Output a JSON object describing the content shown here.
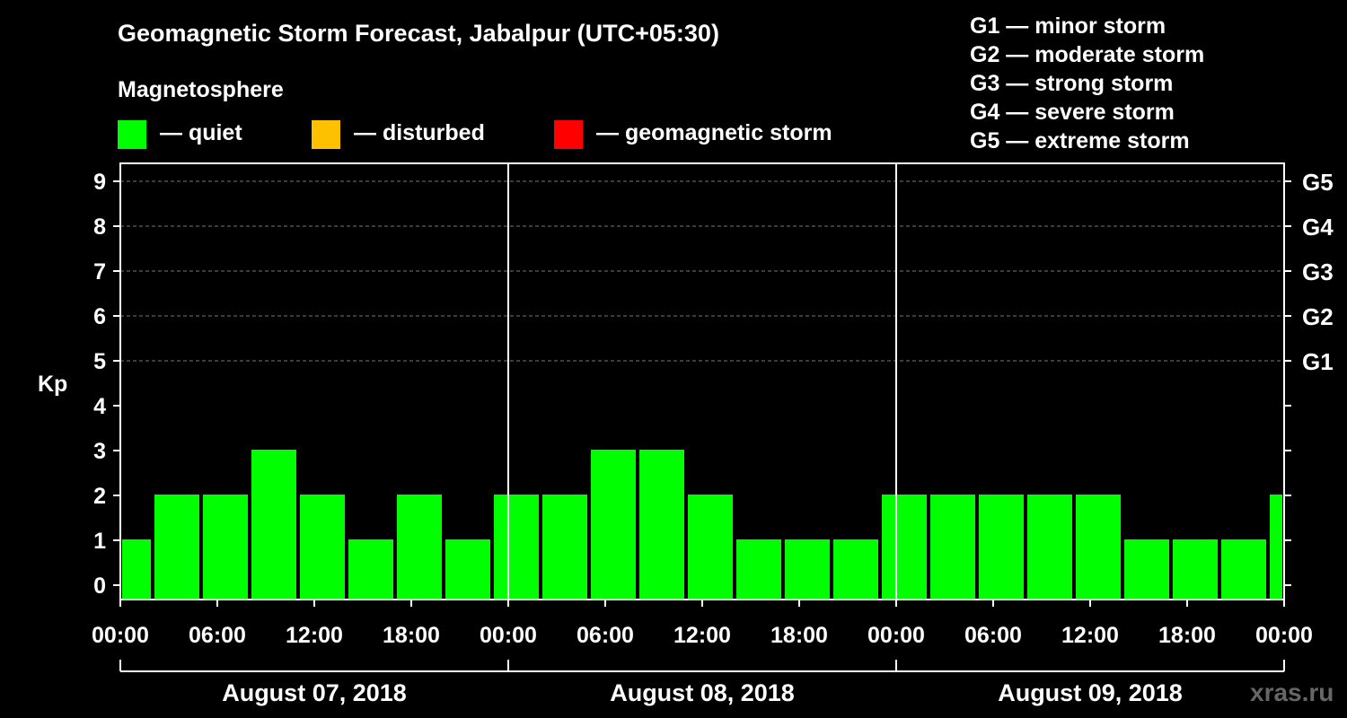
{
  "header": {
    "title": "Geomagnetic Storm Forecast, Jabalpur (UTC+05:30)",
    "magnetosphere_label": "Magnetosphere"
  },
  "legend": [
    {
      "label": "— quiet",
      "color": "#00ff00"
    },
    {
      "label": "— disturbed",
      "color": "#ffc000"
    },
    {
      "label": "— geomagnetic storm",
      "color": "#ff0000"
    }
  ],
  "storm_scale": [
    "G1 — minor storm",
    "G2 — moderate storm",
    "G3 — strong storm",
    "G4 — severe storm",
    "G5 — extreme storm"
  ],
  "watermark": "xras.ru",
  "chart_data": {
    "type": "bar",
    "title": "Geomagnetic Storm Forecast, Jabalpur (UTC+05:30)",
    "ylabel": "Kp",
    "ylim": [
      0,
      9
    ],
    "y_ticks": [
      "0",
      "1",
      "2",
      "3",
      "4",
      "5",
      "6",
      "7",
      "8",
      "9"
    ],
    "right_axis_labels": [
      {
        "kp": 5,
        "label": "G1"
      },
      {
        "kp": 6,
        "label": "G2"
      },
      {
        "kp": 7,
        "label": "G3"
      },
      {
        "kp": 8,
        "label": "G4"
      },
      {
        "kp": 9,
        "label": "G5"
      }
    ],
    "x_tick_labels": [
      "00:00",
      "06:00",
      "12:00",
      "18:00",
      "00:00",
      "06:00",
      "12:00",
      "18:00",
      "00:00",
      "06:00",
      "12:00",
      "18:00",
      "00:00"
    ],
    "x_hours_total": 72,
    "dates": [
      "August 07, 2018",
      "August 08, 2018",
      "August 09, 2018"
    ],
    "bars": [
      {
        "start_hour": 0,
        "kp": 1,
        "status": "quiet"
      },
      {
        "start_hour": 2,
        "kp": 2,
        "status": "quiet"
      },
      {
        "start_hour": 5,
        "kp": 2,
        "status": "quiet"
      },
      {
        "start_hour": 8,
        "kp": 3,
        "status": "quiet"
      },
      {
        "start_hour": 11,
        "kp": 2,
        "status": "quiet"
      },
      {
        "start_hour": 14,
        "kp": 1,
        "status": "quiet"
      },
      {
        "start_hour": 17,
        "kp": 2,
        "status": "quiet"
      },
      {
        "start_hour": 20,
        "kp": 1,
        "status": "quiet"
      },
      {
        "start_hour": 23,
        "kp": 2,
        "status": "quiet"
      },
      {
        "start_hour": 26,
        "kp": 2,
        "status": "quiet"
      },
      {
        "start_hour": 29,
        "kp": 3,
        "status": "quiet"
      },
      {
        "start_hour": 32,
        "kp": 3,
        "status": "quiet"
      },
      {
        "start_hour": 35,
        "kp": 2,
        "status": "quiet"
      },
      {
        "start_hour": 38,
        "kp": 1,
        "status": "quiet"
      },
      {
        "start_hour": 41,
        "kp": 1,
        "status": "quiet"
      },
      {
        "start_hour": 44,
        "kp": 1,
        "status": "quiet"
      },
      {
        "start_hour": 47,
        "kp": 2,
        "status": "quiet"
      },
      {
        "start_hour": 50,
        "kp": 2,
        "status": "quiet"
      },
      {
        "start_hour": 53,
        "kp": 2,
        "status": "quiet"
      },
      {
        "start_hour": 56,
        "kp": 2,
        "status": "quiet"
      },
      {
        "start_hour": 59,
        "kp": 2,
        "status": "quiet"
      },
      {
        "start_hour": 62,
        "kp": 1,
        "status": "quiet"
      },
      {
        "start_hour": 65,
        "kp": 1,
        "status": "quiet"
      },
      {
        "start_hour": 68,
        "kp": 1,
        "status": "quiet"
      },
      {
        "start_hour": 71,
        "kp": 2,
        "status": "quiet"
      }
    ]
  }
}
